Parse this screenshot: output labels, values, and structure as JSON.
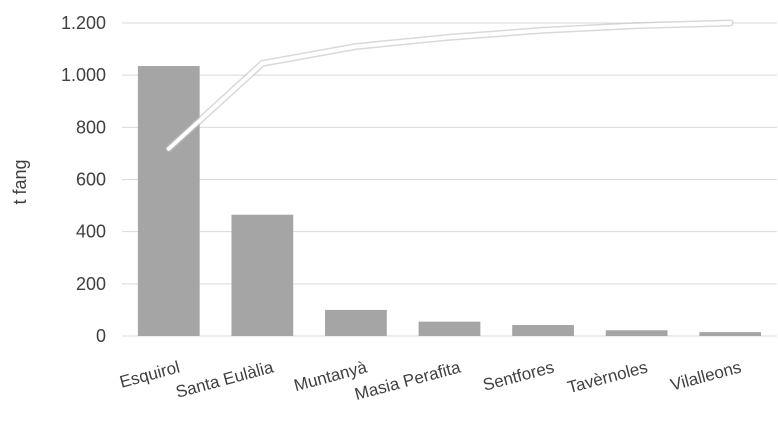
{
  "chart_data": {
    "type": "bar",
    "title": "",
    "ylabel": "t fang",
    "xlabel": "",
    "categories": [
      "Esquirol",
      "Santa Eulàlia",
      "Muntanyà",
      "Masia Perafita",
      "Sentfores",
      "Tavèrnoles",
      "Vilalleons"
    ],
    "series": [
      {
        "type": "bar",
        "values": [
          1035,
          465,
          100,
          55,
          42,
          22,
          15
        ],
        "color": "#a5a5a5"
      },
      {
        "type": "line",
        "values": [
          718,
          1045,
          1110,
          1145,
          1172,
          1190,
          1200
        ],
        "color": "#ffffff"
      }
    ],
    "ylim": [
      0,
      1200
    ],
    "yticks": [
      0,
      200,
      400,
      600,
      800,
      1000,
      1200
    ],
    "ytick_labels": [
      "0",
      "200",
      "400",
      "600",
      "800",
      "1.000",
      "1.200"
    ],
    "grid": true,
    "legend": "none"
  }
}
